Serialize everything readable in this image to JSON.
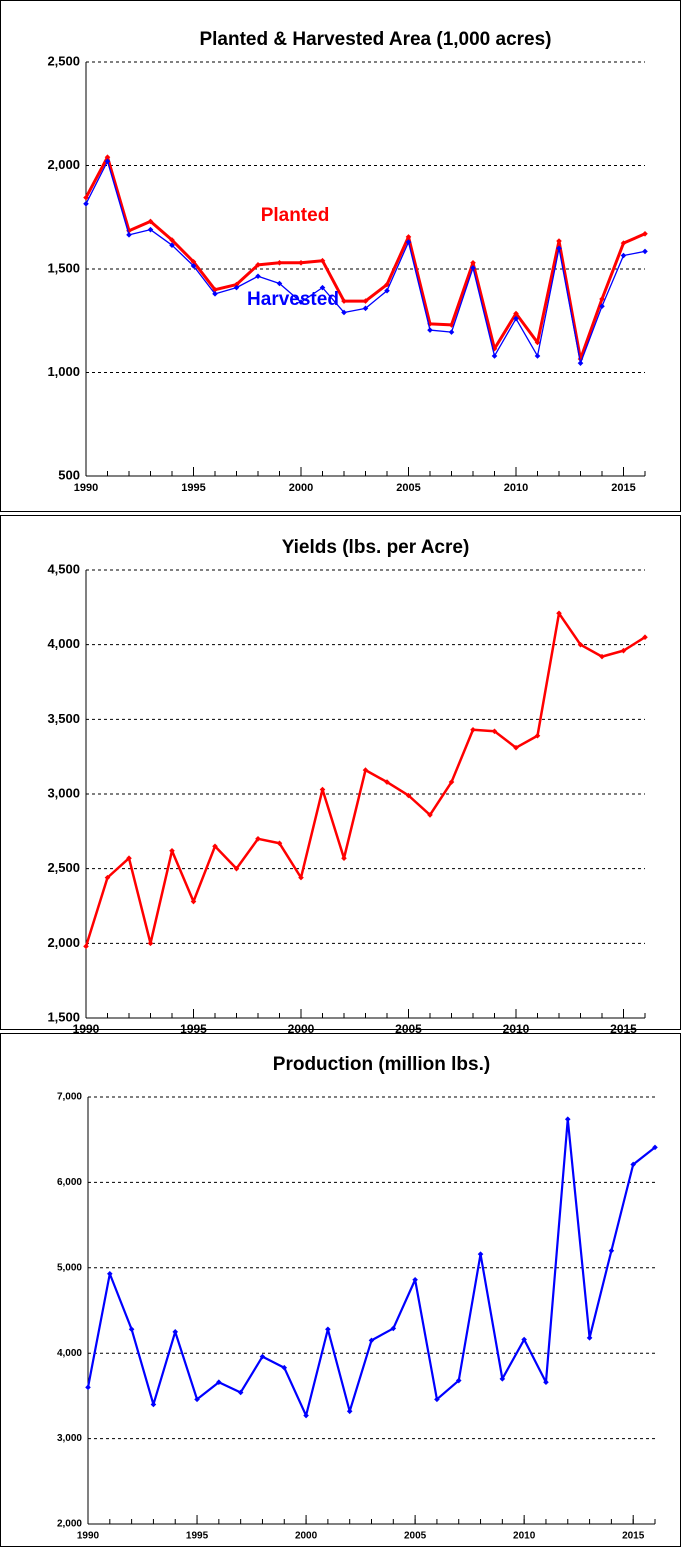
{
  "chart_data": [
    {
      "type": "line",
      "title": "Planted & Harvested Area (1,000 acres)",
      "x": [
        1990,
        1991,
        1992,
        1993,
        1994,
        1995,
        1996,
        1997,
        1998,
        1999,
        2000,
        2001,
        2002,
        2003,
        2004,
        2005,
        2006,
        2007,
        2008,
        2009,
        2010,
        2011,
        2012,
        2013,
        2014,
        2015,
        2016
      ],
      "xlim": [
        1990,
        2016
      ],
      "xticks": [
        1990,
        1995,
        2000,
        2005,
        2010,
        2015
      ],
      "ylim": [
        500,
        2500
      ],
      "yticks": [
        {
          "value": 500,
          "label": "500"
        },
        {
          "value": 1000,
          "label": "1,000"
        },
        {
          "value": 1500,
          "label": "1,500"
        },
        {
          "value": 2000,
          "label": "2,000"
        },
        {
          "value": 2500,
          "label": "2,500"
        }
      ],
      "grid": true,
      "series": [
        {
          "name": "Planted",
          "color": "#ff0000",
          "values": [
            1845,
            2040,
            1685,
            1730,
            1640,
            1535,
            1400,
            1425,
            1520,
            1530,
            1530,
            1540,
            1345,
            1345,
            1425,
            1655,
            1235,
            1230,
            1530,
            1115,
            1285,
            1145,
            1635,
            1065,
            1355,
            1625,
            1670
          ]
        },
        {
          "name": "Harvested",
          "color": "#0000ff",
          "values": [
            1815,
            2020,
            1665,
            1690,
            1615,
            1515,
            1380,
            1410,
            1465,
            1430,
            1340,
            1410,
            1290,
            1310,
            1395,
            1630,
            1205,
            1195,
            1505,
            1080,
            1260,
            1080,
            1600,
            1045,
            1320,
            1565,
            1585
          ]
        }
      ]
    },
    {
      "type": "line",
      "title": "Yields (lbs. per Acre)",
      "x": [
        1990,
        1991,
        1992,
        1993,
        1994,
        1995,
        1996,
        1997,
        1998,
        1999,
        2000,
        2001,
        2002,
        2003,
        2004,
        2005,
        2006,
        2007,
        2008,
        2009,
        2010,
        2011,
        2012,
        2013,
        2014,
        2015,
        2016
      ],
      "xlim": [
        1990,
        2016
      ],
      "xticks": [
        1990,
        1995,
        2000,
        2005,
        2010,
        2015
      ],
      "ylim": [
        1500,
        4500
      ],
      "yticks": [
        {
          "value": 1500,
          "label": "1,500"
        },
        {
          "value": 2000,
          "label": "2,000"
        },
        {
          "value": 2500,
          "label": "2,500"
        },
        {
          "value": 3000,
          "label": "3,000"
        },
        {
          "value": 3500,
          "label": "3,500"
        },
        {
          "value": 4000,
          "label": "4,000"
        },
        {
          "value": 4500,
          "label": "4,500"
        }
      ],
      "grid": true,
      "series": [
        {
          "color": "#ff0000",
          "values": [
            1980,
            2440,
            2570,
            2000,
            2620,
            2280,
            2650,
            2500,
            2700,
            2670,
            2440,
            3030,
            2570,
            3160,
            3080,
            2990,
            2860,
            3080,
            3430,
            3420,
            3310,
            3390,
            4210,
            4000,
            3920,
            3960,
            4050
          ]
        }
      ]
    },
    {
      "type": "line",
      "title": "Production (million lbs.)",
      "x": [
        1990,
        1991,
        1992,
        1993,
        1994,
        1995,
        1996,
        1997,
        1998,
        1999,
        2000,
        2001,
        2002,
        2003,
        2004,
        2005,
        2006,
        2007,
        2008,
        2009,
        2010,
        2011,
        2012,
        2013,
        2014,
        2015,
        2016
      ],
      "xlim": [
        1990,
        2016
      ],
      "xticks": [
        1990,
        1995,
        2000,
        2005,
        2010,
        2015
      ],
      "ylim": [
        2000,
        7000
      ],
      "yticks": [
        {
          "value": 2000,
          "label": "2,000"
        },
        {
          "value": 3000,
          "label": "3,000"
        },
        {
          "value": 4000,
          "label": "4,000"
        },
        {
          "value": 5000,
          "label": "5,000"
        },
        {
          "value": 6000,
          "label": "6,000"
        },
        {
          "value": 7000,
          "label": "7,000"
        }
      ],
      "grid": true,
      "series": [
        {
          "color": "#0000ff",
          "values": [
            3600,
            4930,
            4280,
            3400,
            4250,
            3460,
            3660,
            3540,
            3960,
            3830,
            3270,
            4280,
            3320,
            4150,
            4290,
            4860,
            3460,
            3680,
            5160,
            3700,
            4160,
            3660,
            6740,
            4180,
            5200,
            6210,
            6410
          ]
        }
      ]
    }
  ]
}
